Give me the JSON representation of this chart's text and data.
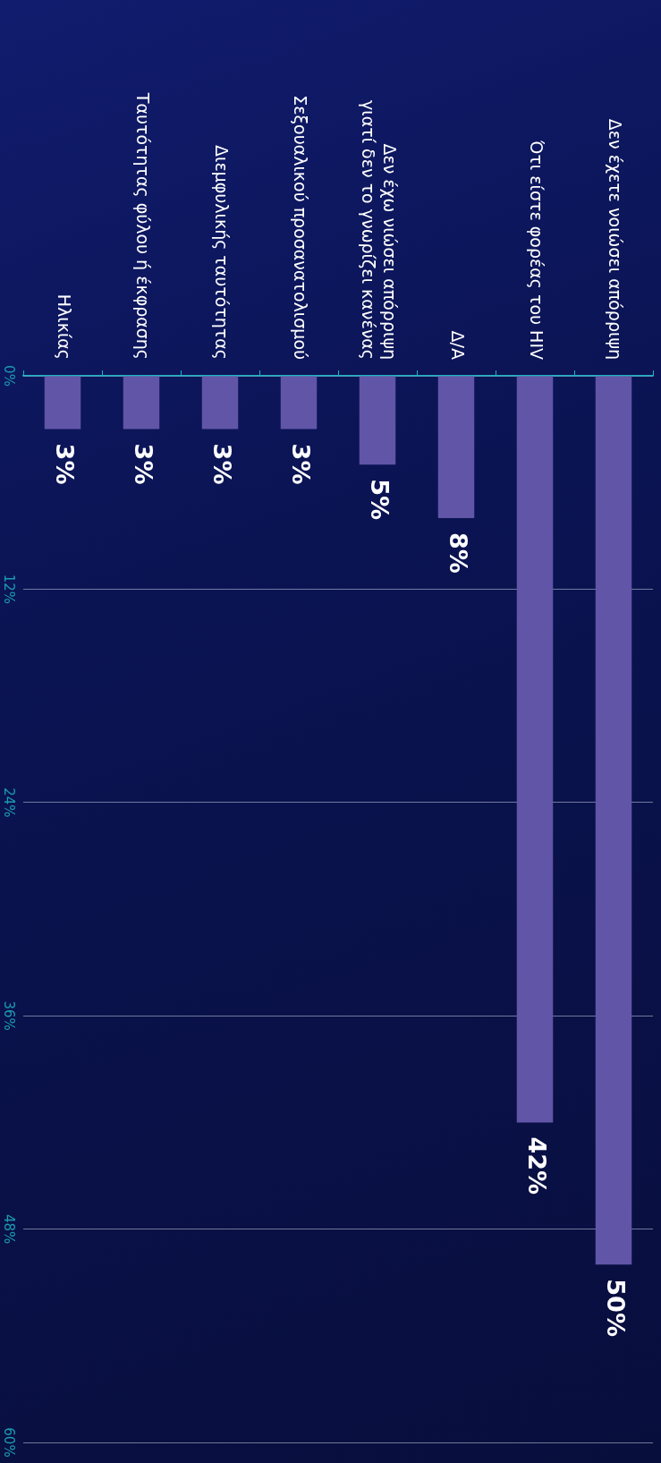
{
  "chart_data": {
    "type": "bar",
    "categories": [
      "Ηλικίας",
      "Ταυτότητας φύλου ή έκφρασης",
      "Διεμφυλικής ταυτότητας",
      "Σεξουαλικού προσανατολισμού",
      "Δεν έχω νιώσει απόρριψη γιατί δεν το γνωρίζει κανένας",
      "Δ/Α",
      "Ότι είστε φορέας του HIV",
      "Δεν έχετε νοιώσει απόρριψη"
    ],
    "values": [
      3,
      3,
      3,
      3,
      5,
      8,
      42,
      50
    ],
    "value_labels": [
      "3%",
      "3%",
      "3%",
      "3%",
      "5%",
      "8%",
      "42%",
      "50%"
    ],
    "color": "#6155a8",
    "ylim": [
      60,
      0
    ],
    "yticks": [
      {
        "value": 0,
        "label": "0%"
      },
      {
        "value": 12,
        "label": "12%"
      },
      {
        "value": 24,
        "label": "24%"
      },
      {
        "value": 36,
        "label": "36%"
      },
      {
        "value": 48,
        "label": "48%"
      },
      {
        "value": 60,
        "label": "60%"
      }
    ],
    "grid": "y",
    "legend": false
  }
}
